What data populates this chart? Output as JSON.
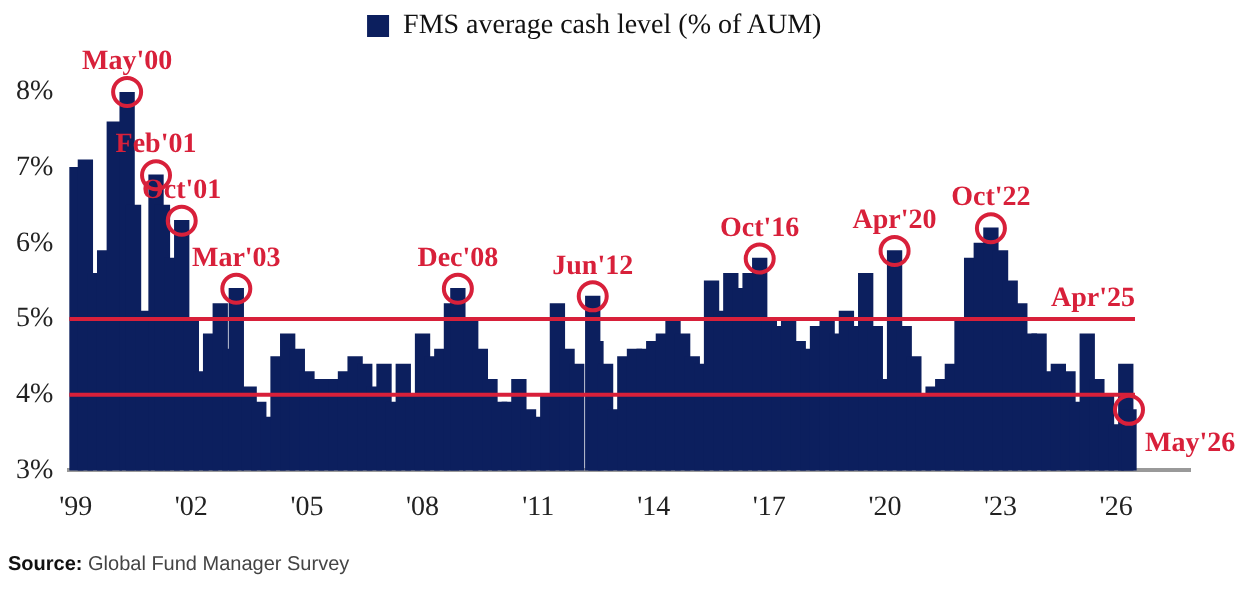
{
  "chart_data": {
    "type": "bar",
    "x": [
      "1999-01",
      "1999-04",
      "1999-07",
      "1999-10",
      "2000-01",
      "2000-05",
      "2000-07",
      "2000-10",
      "2001-02",
      "2001-04",
      "2001-07",
      "2001-10",
      "2002-01",
      "2002-04",
      "2002-07",
      "2002-10",
      "2003-01",
      "2003-03",
      "2003-07",
      "2003-10",
      "2004-01",
      "2004-04",
      "2004-07",
      "2004-10",
      "2005-01",
      "2005-04",
      "2005-07",
      "2005-10",
      "2006-01",
      "2006-04",
      "2006-07",
      "2006-10",
      "2007-01",
      "2007-04",
      "2007-07",
      "2007-10",
      "2008-01",
      "2008-04",
      "2008-07",
      "2008-10",
      "2008-12",
      "2009-04",
      "2009-07",
      "2009-10",
      "2010-01",
      "2010-04",
      "2010-07",
      "2010-10",
      "2011-01",
      "2011-04",
      "2011-07",
      "2011-10",
      "2012-01",
      "2012-06",
      "2012-07",
      "2012-10",
      "2013-01",
      "2013-04",
      "2013-07",
      "2013-10",
      "2014-01",
      "2014-04",
      "2014-07",
      "2014-10",
      "2015-01",
      "2015-04",
      "2015-07",
      "2015-10",
      "2016-01",
      "2016-04",
      "2016-07",
      "2016-10",
      "2017-01",
      "2017-04",
      "2017-07",
      "2017-10",
      "2018-01",
      "2018-04",
      "2018-07",
      "2018-10",
      "2019-01",
      "2019-04",
      "2019-07",
      "2019-10",
      "2020-01",
      "2020-04",
      "2020-07",
      "2020-10",
      "2021-01",
      "2021-04",
      "2021-07",
      "2021-10",
      "2022-01",
      "2022-04",
      "2022-07",
      "2022-10",
      "2023-01",
      "2023-04",
      "2023-07",
      "2023-10",
      "2024-01",
      "2024-04",
      "2024-07",
      "2024-10",
      "2025-01",
      "2025-04",
      "2025-07",
      "2025-10",
      "2026-01",
      "2026-04",
      "2026-05"
    ],
    "series": [
      {
        "name": "FMS average cash level (% of AUM)",
        "color": "#0c1f5e",
        "values": [
          7.0,
          7.1,
          5.6,
          5.9,
          7.6,
          8.0,
          6.5,
          5.1,
          6.9,
          6.5,
          5.8,
          6.3,
          5.0,
          4.3,
          4.8,
          5.2,
          4.6,
          5.4,
          4.1,
          3.9,
          3.7,
          4.5,
          4.8,
          4.6,
          4.3,
          4.2,
          4.2,
          4.2,
          4.3,
          4.5,
          4.4,
          4.1,
          4.4,
          3.9,
          4.4,
          4.0,
          4.8,
          4.5,
          4.6,
          5.2,
          5.4,
          5.0,
          4.6,
          4.2,
          3.9,
          3.9,
          4.2,
          3.8,
          3.7,
          4.0,
          5.2,
          4.6,
          4.4,
          5.3,
          4.7,
          4.4,
          3.8,
          4.5,
          4.6,
          4.6,
          4.7,
          4.8,
          5.0,
          4.8,
          4.5,
          4.4,
          5.5,
          5.1,
          5.6,
          5.4,
          5.6,
          5.8,
          5.0,
          4.9,
          5.0,
          4.7,
          4.6,
          4.9,
          5.0,
          4.8,
          5.1,
          4.9,
          5.6,
          4.9,
          4.2,
          5.9,
          4.9,
          4.5,
          4.0,
          4.1,
          4.2,
          4.4,
          5.0,
          5.8,
          6.0,
          6.2,
          5.9,
          5.5,
          5.2,
          4.8,
          4.8,
          4.3,
          4.4,
          4.3,
          3.9,
          4.8,
          4.2,
          4.0,
          3.6,
          4.4,
          3.8
        ]
      }
    ],
    "xlim": [
      "1998-11",
      "2027-12"
    ],
    "xticks": [
      {
        "value": "1999-01",
        "label": "'99"
      },
      {
        "value": "2002-01",
        "label": "'02"
      },
      {
        "value": "2005-01",
        "label": "'05"
      },
      {
        "value": "2008-01",
        "label": "'08"
      },
      {
        "value": "2011-01",
        "label": "'11"
      },
      {
        "value": "2014-01",
        "label": "'14"
      },
      {
        "value": "2017-01",
        "label": "'17"
      },
      {
        "value": "2020-01",
        "label": "'20"
      },
      {
        "value": "2023-01",
        "label": "'23"
      },
      {
        "value": "2026-01",
        "label": "'26"
      }
    ],
    "ylim": [
      3,
      8
    ],
    "yticks": [
      {
        "value": 3,
        "label": "3%"
      },
      {
        "value": 4,
        "label": "4%"
      },
      {
        "value": 5,
        "label": "5%"
      },
      {
        "value": 6,
        "label": "6%"
      },
      {
        "value": 7,
        "label": "7%"
      },
      {
        "value": 8,
        "label": "8%"
      }
    ],
    "ref_lines": [
      {
        "axis": "y",
        "value": 5,
        "label": "Apr'25",
        "color": "#d8203a"
      },
      {
        "axis": "y",
        "value": 4,
        "color": "#d8203a"
      }
    ],
    "annotations": [
      {
        "text": "May'00",
        "x": "2000-05",
        "y": 8.0
      },
      {
        "text": "Feb'01",
        "x": "2001-02",
        "y": 6.9
      },
      {
        "text": "Oct'01",
        "x": "2001-10",
        "y": 6.3
      },
      {
        "text": "Mar'03",
        "x": "2003-03",
        "y": 5.4
      },
      {
        "text": "Dec'08",
        "x": "2008-12",
        "y": 5.4
      },
      {
        "text": "Jun'12",
        "x": "2012-06",
        "y": 5.3
      },
      {
        "text": "Oct'16",
        "x": "2016-10",
        "y": 5.8
      },
      {
        "text": "Apr'20",
        "x": "2020-04",
        "y": 5.9
      },
      {
        "text": "Oct'22",
        "x": "2022-10",
        "y": 6.2
      },
      {
        "text": "May'26",
        "x": "2026-05",
        "y": 3.8
      },
      "Source: Global Fund Manager Survey"
    ],
    "grid": false,
    "legend": "top"
  }
}
